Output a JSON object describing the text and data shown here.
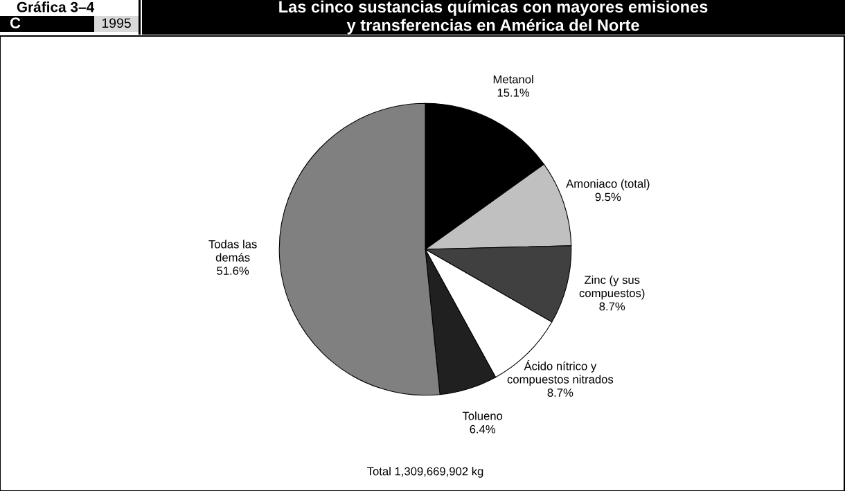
{
  "chart_data": {
    "type": "pie",
    "title": "Las cinco sustancias químicas con mayores emisiones\ny transferencias en América del Norte",
    "categories": [
      "Metanol",
      "Amoniaco (total)",
      "Zinc (y sus\ncompuestos)",
      "Ácido nítrico y\ncompuestos nitrados",
      "Tolueno",
      "Todas las\ndemás"
    ],
    "values": [
      15.1,
      9.5,
      8.7,
      8.7,
      6.4,
      51.6
    ],
    "value_labels": [
      "15.1%",
      "9.5%",
      "8.7%",
      "8.7%",
      "6.4%",
      "51.6%"
    ],
    "colors": [
      "#000000",
      "#c0c0c0",
      "#404040",
      "#ffffff",
      "#202020",
      "#808080"
    ],
    "annotations": [
      "Gráfica 3–4",
      "C",
      "1995",
      "Total 1,309,669,902 kg"
    ],
    "legend": false
  }
}
